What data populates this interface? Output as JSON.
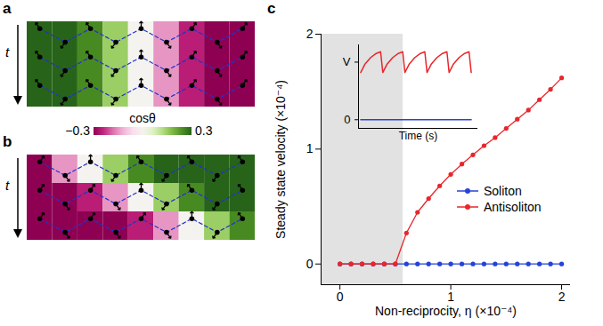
{
  "chart_data": [
    {
      "type": "heatmap",
      "panel_label": "a",
      "y_label": "t",
      "cells": [
        [
          0.3,
          0.3,
          0.25,
          0.15,
          0,
          -0.15,
          -0.25,
          -0.3,
          -0.3
        ],
        [
          0.3,
          0.3,
          0.25,
          0.15,
          0,
          -0.15,
          -0.25,
          -0.3,
          -0.3
        ],
        [
          0.3,
          0.3,
          0.25,
          0.15,
          0,
          -0.15,
          -0.25,
          -0.3,
          -0.3
        ]
      ],
      "colorbar": {
        "label": "cosθ",
        "range": [
          -0.3,
          0.3
        ],
        "ticks": [
          -0.3,
          0.3
        ]
      }
    },
    {
      "type": "heatmap",
      "panel_label": "b",
      "y_label": "t",
      "cells": [
        [
          -0.3,
          -0.15,
          0,
          0.15,
          0.25,
          0.3,
          0.3,
          0.3,
          0.3
        ],
        [
          -0.3,
          -0.3,
          -0.25,
          -0.15,
          0,
          0.15,
          0.25,
          0.3,
          0.3
        ],
        [
          -0.3,
          -0.3,
          -0.3,
          -0.3,
          -0.25,
          -0.15,
          0,
          0.15,
          0.25
        ]
      ]
    },
    {
      "type": "line",
      "panel_label": "c",
      "x_label": "Non-reciprocity, η (×10⁻⁴)",
      "y_label": "Steady state velocity (×10⁻⁴)",
      "xlim": [
        -0.17,
        2.08
      ],
      "ylim": [
        -0.18,
        2
      ],
      "xticks": [
        0,
        1,
        2
      ],
      "yticks": [
        0,
        1,
        2
      ],
      "shaded_region": [
        -0.17,
        0.57
      ],
      "legend": "right",
      "x": [
        0,
        0.1,
        0.2,
        0.3,
        0.4,
        0.5,
        0.6,
        0.7,
        0.8,
        0.9,
        1.0,
        1.1,
        1.2,
        1.3,
        1.4,
        1.5,
        1.6,
        1.7,
        1.8,
        1.9,
        2.0
      ],
      "series": [
        {
          "name": "Soliton",
          "color": "#2443d6",
          "marker": "circle",
          "values": [
            0,
            0,
            0,
            0,
            0,
            0,
            0,
            0,
            0,
            0,
            0,
            0,
            0,
            0,
            0,
            0,
            0,
            0,
            0,
            0,
            0
          ]
        },
        {
          "name": "Antisoliton",
          "color": "#e8262b",
          "marker": "circle",
          "values": [
            0,
            0,
            0,
            0,
            0,
            0,
            0.27,
            0.45,
            0.57,
            0.68,
            0.78,
            0.87,
            0.95,
            1.03,
            1.1,
            1.18,
            1.26,
            1.34,
            1.43,
            1.52,
            1.62
          ]
        }
      ],
      "inset": {
        "type": "line",
        "x_label": "Time (s)",
        "xlim": [
          -0.1,
          5.3
        ],
        "ylim": [
          -0.15,
          1.3
        ],
        "yticks": [
          {
            "value": 1,
            "label": "V"
          },
          0
        ],
        "tick_labels": "y",
        "series": [
          {
            "color": "#e8262b",
            "x": [
              0,
              0.2,
              0.45,
              0.7,
              0.9,
              1,
              1.2,
              1.45,
              1.7,
              1.9,
              2,
              2.2,
              2.45,
              2.7,
              2.9,
              3,
              3.2,
              3.45,
              3.7,
              3.9,
              4,
              4.2,
              4.45,
              4.7,
              4.9,
              5
            ],
            "values": [
              0.82,
              0.97,
              1.08,
              1.15,
              1.18,
              0.82,
              0.97,
              1.08,
              1.15,
              1.18,
              0.82,
              0.97,
              1.08,
              1.15,
              1.18,
              0.82,
              0.97,
              1.08,
              1.15,
              1.18,
              0.82,
              0.97,
              1.08,
              1.15,
              1.18,
              0.82
            ]
          },
          {
            "color": "#2443d6",
            "x": [
              0,
              5
            ],
            "values": [
              0,
              0
            ]
          }
        ]
      }
    }
  ]
}
